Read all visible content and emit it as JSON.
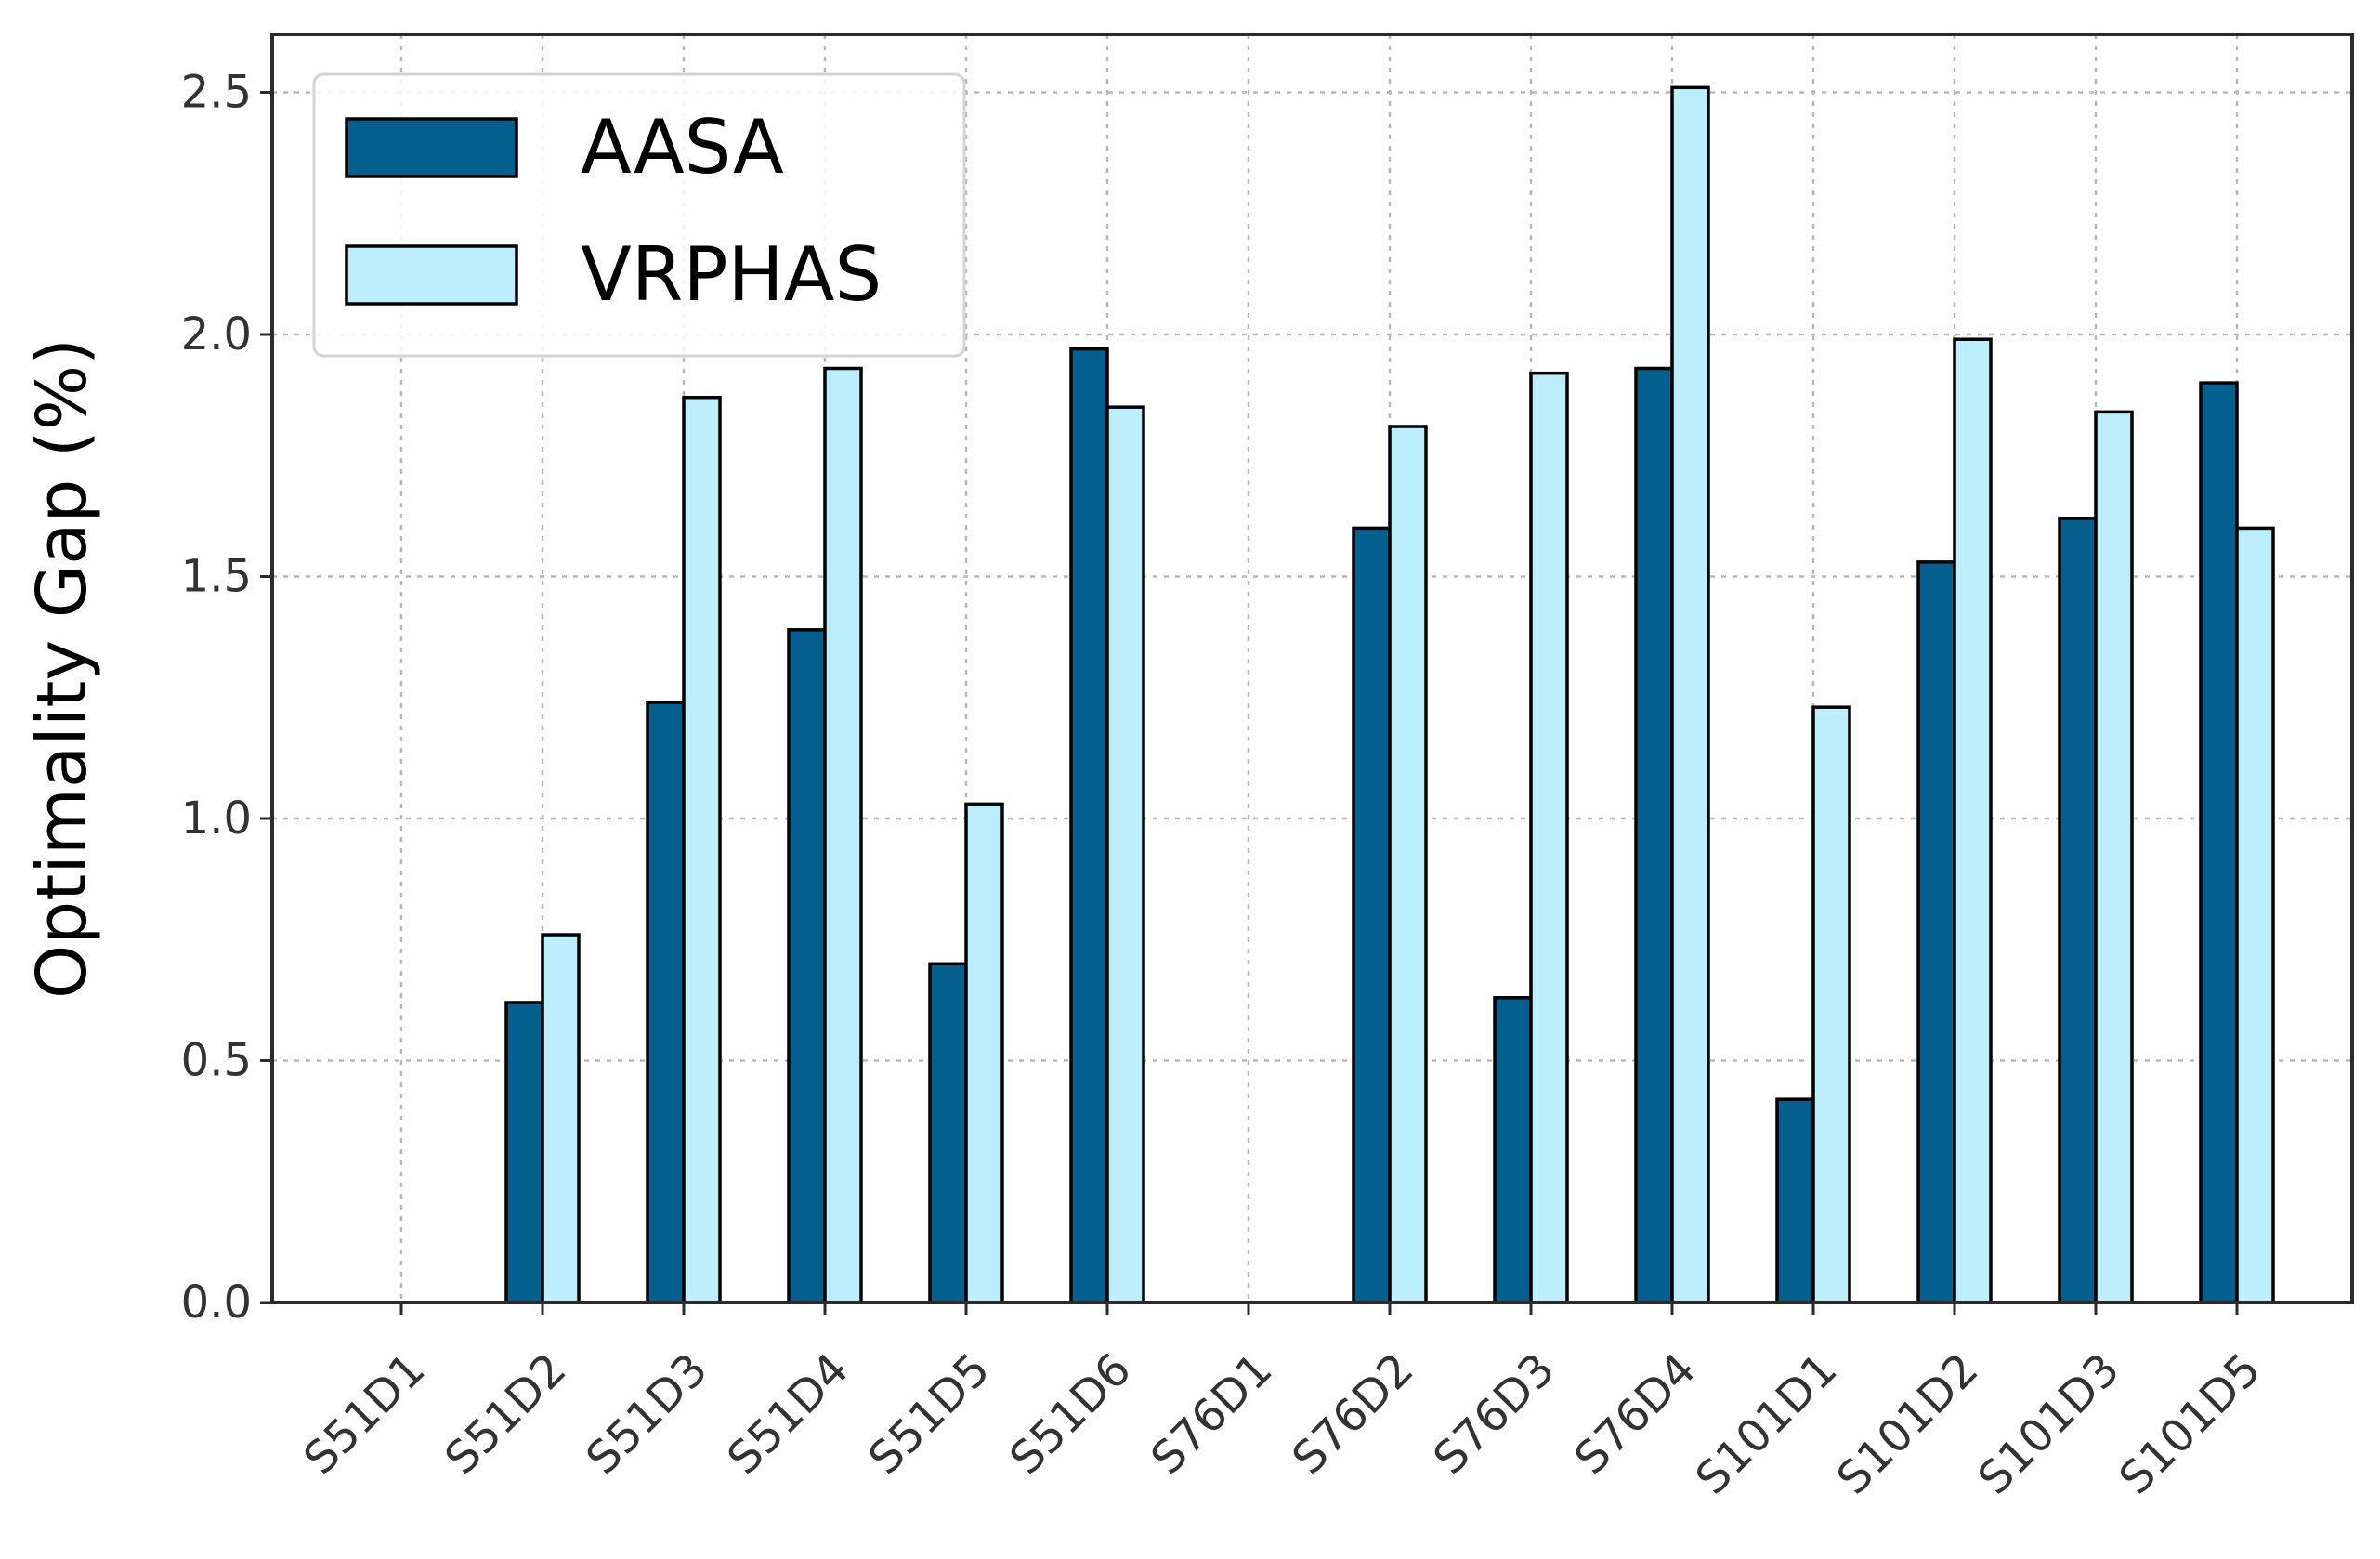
{
  "chart_data": {
    "type": "bar",
    "title": "",
    "xlabel": "",
    "ylabel": "Optimality Gap (%)",
    "ylim": [
      0,
      2.62
    ],
    "yticks": [
      "0.0",
      "0.5",
      "1.0",
      "1.5",
      "2.0",
      "2.5"
    ],
    "grid": true,
    "legend_position": "top-left",
    "categories": [
      "S51D1",
      "S51D2",
      "S51D3",
      "S51D4",
      "S51D5",
      "S51D6",
      "S76D1",
      "S76D2",
      "S76D3",
      "S76D4",
      "S101D1",
      "S101D2",
      "S101D3",
      "S101D5"
    ],
    "series": [
      {
        "name": "AASA",
        "color": "#05608f",
        "values": [
          0.0,
          0.62,
          1.24,
          1.39,
          0.7,
          1.97,
          0.0,
          1.6,
          0.63,
          1.93,
          0.42,
          1.53,
          1.62,
          1.9
        ]
      },
      {
        "name": "VRPHAS",
        "color": "#bdeefd",
        "values": [
          0.0,
          0.76,
          1.87,
          1.93,
          1.03,
          1.85,
          0.0,
          1.81,
          1.92,
          2.51,
          1.23,
          1.99,
          1.84,
          1.6
        ]
      }
    ]
  }
}
